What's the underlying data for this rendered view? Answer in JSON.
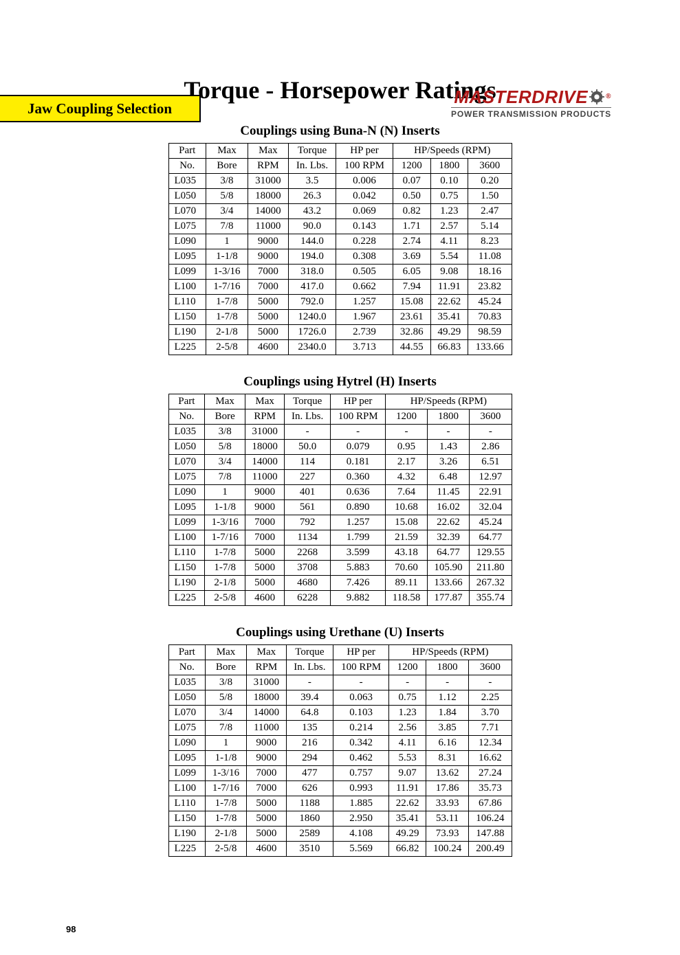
{
  "header": {
    "section_title": "Jaw Coupling Selection",
    "brand_name": "MASTERDRIVE",
    "brand_tagline": "POWER TRANSMISSION PRODUCTS",
    "brand_color": "#b01818",
    "header_bg": "#ffee00"
  },
  "page_title": "Torque - Horsepower Ratings",
  "page_number": "98",
  "column_headers": {
    "part": [
      "Part",
      "No."
    ],
    "bore": [
      "Max",
      "Bore"
    ],
    "rpm": [
      "Max",
      "RPM"
    ],
    "torque": [
      "Torque",
      "In. Lbs."
    ],
    "hp_per": [
      "HP per",
      "100 RPM"
    ],
    "hp_speeds": "HP/Speeds (RPM)",
    "speed_1200": "1200",
    "speed_1800": "1800",
    "speed_3600": "3600"
  },
  "tables": [
    {
      "title": "Couplings using Buna-N (N) Inserts",
      "rows": [
        [
          "L035",
          "3/8",
          "31000",
          "3.5",
          "0.006",
          "0.07",
          "0.10",
          "0.20"
        ],
        [
          "L050",
          "5/8",
          "18000",
          "26.3",
          "0.042",
          "0.50",
          "0.75",
          "1.50"
        ],
        [
          "L070",
          "3/4",
          "14000",
          "43.2",
          "0.069",
          "0.82",
          "1.23",
          "2.47"
        ],
        [
          "L075",
          "7/8",
          "11000",
          "90.0",
          "0.143",
          "1.71",
          "2.57",
          "5.14"
        ],
        [
          "L090",
          "1",
          "9000",
          "144.0",
          "0.228",
          "2.74",
          "4.11",
          "8.23"
        ],
        [
          "L095",
          "1-1/8",
          "9000",
          "194.0",
          "0.308",
          "3.69",
          "5.54",
          "11.08"
        ],
        [
          "L099",
          "1-3/16",
          "7000",
          "318.0",
          "0.505",
          "6.05",
          "9.08",
          "18.16"
        ],
        [
          "L100",
          "1-7/16",
          "7000",
          "417.0",
          "0.662",
          "7.94",
          "11.91",
          "23.82"
        ],
        [
          "L110",
          "1-7/8",
          "5000",
          "792.0",
          "1.257",
          "15.08",
          "22.62",
          "45.24"
        ],
        [
          "L150",
          "1-7/8",
          "5000",
          "1240.0",
          "1.967",
          "23.61",
          "35.41",
          "70.83"
        ],
        [
          "L190",
          "2-1/8",
          "5000",
          "1726.0",
          "2.739",
          "32.86",
          "49.29",
          "98.59"
        ],
        [
          "L225",
          "2-5/8",
          "4600",
          "2340.0",
          "3.713",
          "44.55",
          "66.83",
          "133.66"
        ]
      ]
    },
    {
      "title": "Couplings using Hytrel (H) Inserts",
      "rows": [
        [
          "L035",
          "3/8",
          "31000",
          "-",
          "-",
          "-",
          "-",
          "-"
        ],
        [
          "L050",
          "5/8",
          "18000",
          "50.0",
          "0.079",
          "0.95",
          "1.43",
          "2.86"
        ],
        [
          "L070",
          "3/4",
          "14000",
          "114",
          "0.181",
          "2.17",
          "3.26",
          "6.51"
        ],
        [
          "L075",
          "7/8",
          "11000",
          "227",
          "0.360",
          "4.32",
          "6.48",
          "12.97"
        ],
        [
          "L090",
          "1",
          "9000",
          "401",
          "0.636",
          "7.64",
          "11.45",
          "22.91"
        ],
        [
          "L095",
          "1-1/8",
          "9000",
          "561",
          "0.890",
          "10.68",
          "16.02",
          "32.04"
        ],
        [
          "L099",
          "1-3/16",
          "7000",
          "792",
          "1.257",
          "15.08",
          "22.62",
          "45.24"
        ],
        [
          "L100",
          "1-7/16",
          "7000",
          "1134",
          "1.799",
          "21.59",
          "32.39",
          "64.77"
        ],
        [
          "L110",
          "1-7/8",
          "5000",
          "2268",
          "3.599",
          "43.18",
          "64.77",
          "129.55"
        ],
        [
          "L150",
          "1-7/8",
          "5000",
          "3708",
          "5.883",
          "70.60",
          "105.90",
          "211.80"
        ],
        [
          "L190",
          "2-1/8",
          "5000",
          "4680",
          "7.426",
          "89.11",
          "133.66",
          "267.32"
        ],
        [
          "L225",
          "2-5/8",
          "4600",
          "6228",
          "9.882",
          "118.58",
          "177.87",
          "355.74"
        ]
      ]
    },
    {
      "title": "Couplings using Urethane (U) Inserts",
      "rows": [
        [
          "L035",
          "3/8",
          "31000",
          "-",
          "-",
          "-",
          "-",
          "-"
        ],
        [
          "L050",
          "5/8",
          "18000",
          "39.4",
          "0.063",
          "0.75",
          "1.12",
          "2.25"
        ],
        [
          "L070",
          "3/4",
          "14000",
          "64.8",
          "0.103",
          "1.23",
          "1.84",
          "3.70"
        ],
        [
          "L075",
          "7/8",
          "11000",
          "135",
          "0.214",
          "2.56",
          "3.85",
          "7.71"
        ],
        [
          "L090",
          "1",
          "9000",
          "216",
          "0.342",
          "4.11",
          "6.16",
          "12.34"
        ],
        [
          "L095",
          "1-1/8",
          "9000",
          "294",
          "0.462",
          "5.53",
          "8.31",
          "16.62"
        ],
        [
          "L099",
          "1-3/16",
          "7000",
          "477",
          "0.757",
          "9.07",
          "13.62",
          "27.24"
        ],
        [
          "L100",
          "1-7/16",
          "7000",
          "626",
          "0.993",
          "11.91",
          "17.86",
          "35.73"
        ],
        [
          "L110",
          "1-7/8",
          "5000",
          "1188",
          "1.885",
          "22.62",
          "33.93",
          "67.86"
        ],
        [
          "L150",
          "1-7/8",
          "5000",
          "1860",
          "2.950",
          "35.41",
          "53.11",
          "106.24"
        ],
        [
          "L190",
          "2-1/8",
          "5000",
          "2589",
          "4.108",
          "49.29",
          "73.93",
          "147.88"
        ],
        [
          "L225",
          "2-5/8",
          "4600",
          "3510",
          "5.569",
          "66.82",
          "100.24",
          "200.49"
        ]
      ]
    }
  ]
}
